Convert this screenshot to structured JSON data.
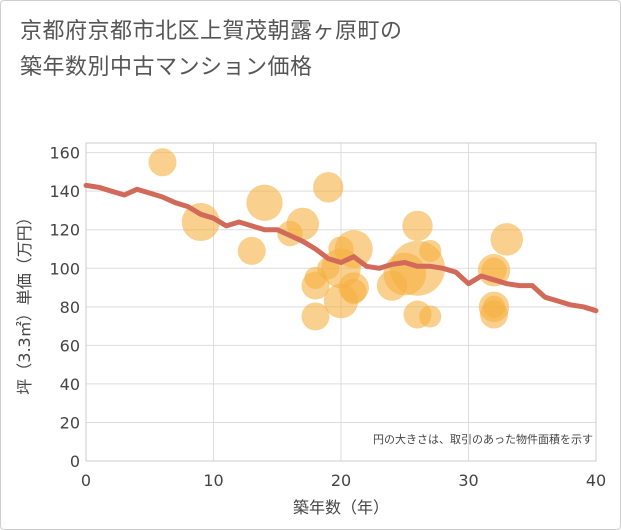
{
  "title_line1": "京都府京都市北区上賀茂朝露ヶ原町の",
  "title_line2": "築年数別中古マンション価格",
  "colors": {
    "bubble": "#F5B041",
    "line": "#D26A5A",
    "grid": "#dddddd"
  },
  "chart_data": {
    "type": "scatter",
    "xlabel": "築年数（年）",
    "ylabel": "坪（3.3㎡）単価（万円）",
    "xlim": [
      0,
      40
    ],
    "ylim": [
      0,
      165
    ],
    "xticks": [
      0,
      10,
      20,
      30,
      40
    ],
    "yticks": [
      0,
      20,
      40,
      60,
      80,
      100,
      120,
      140,
      160
    ],
    "grid": true,
    "annotation": "円の大きさは、取引のあった物件面積を示す",
    "bubbles": [
      {
        "x": 6,
        "y": 155,
        "size": 4
      },
      {
        "x": 9,
        "y": 124,
        "size": 9
      },
      {
        "x": 13,
        "y": 109,
        "size": 4
      },
      {
        "x": 14,
        "y": 134,
        "size": 8
      },
      {
        "x": 16,
        "y": 118,
        "size": 3
      },
      {
        "x": 17,
        "y": 123,
        "size": 6
      },
      {
        "x": 18,
        "y": 95,
        "size": 2
      },
      {
        "x": 18,
        "y": 91,
        "size": 4
      },
      {
        "x": 18,
        "y": 75,
        "size": 4
      },
      {
        "x": 19,
        "y": 142,
        "size": 5
      },
      {
        "x": 19,
        "y": 100,
        "size": 2
      },
      {
        "x": 20,
        "y": 110,
        "size": 3
      },
      {
        "x": 20,
        "y": 100,
        "size": 10
      },
      {
        "x": 20,
        "y": 83,
        "size": 7
      },
      {
        "x": 21,
        "y": 110,
        "size": 9
      },
      {
        "x": 21,
        "y": 90,
        "size": 5
      },
      {
        "x": 21,
        "y": 88,
        "size": 3
      },
      {
        "x": 24,
        "y": 91,
        "size": 5
      },
      {
        "x": 25,
        "y": 97,
        "size": 12
      },
      {
        "x": 26,
        "y": 122,
        "size": 5
      },
      {
        "x": 26,
        "y": 100,
        "size": 22
      },
      {
        "x": 26,
        "y": 76,
        "size": 4
      },
      {
        "x": 27,
        "y": 109,
        "size": 2
      },
      {
        "x": 27,
        "y": 75,
        "size": 2
      },
      {
        "x": 32,
        "y": 99,
        "size": 6
      },
      {
        "x": 32,
        "y": 99,
        "size": 3
      },
      {
        "x": 32,
        "y": 80,
        "size": 5
      },
      {
        "x": 32,
        "y": 76,
        "size": 4
      },
      {
        "x": 32,
        "y": 80,
        "size": 2
      },
      {
        "x": 33,
        "y": 115,
        "size": 6
      }
    ],
    "trend_line": {
      "x": [
        0,
        1,
        2,
        3,
        4,
        5,
        6,
        7,
        8,
        9,
        10,
        11,
        12,
        13,
        14,
        15,
        16,
        17,
        18,
        19,
        20,
        21,
        22,
        23,
        24,
        25,
        26,
        27,
        28,
        29,
        30,
        31,
        32,
        33,
        34,
        35,
        36,
        37,
        38,
        39,
        40
      ],
      "y": [
        143,
        142,
        140,
        138,
        141,
        139,
        137,
        134,
        132,
        128,
        126,
        122,
        124,
        122,
        120,
        120,
        117,
        114,
        110,
        105,
        103,
        106,
        101,
        100,
        102,
        103,
        101,
        101,
        100,
        98,
        92,
        96,
        94,
        92,
        91,
        91,
        85,
        83,
        81,
        80,
        78
      ]
    }
  }
}
